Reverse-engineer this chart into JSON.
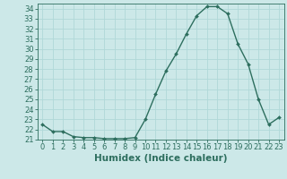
{
  "x": [
    0,
    1,
    2,
    3,
    4,
    5,
    6,
    7,
    8,
    9,
    10,
    11,
    12,
    13,
    14,
    15,
    16,
    17,
    18,
    19,
    20,
    21,
    22,
    23
  ],
  "y": [
    22.5,
    21.8,
    21.8,
    21.3,
    21.2,
    21.2,
    21.1,
    21.1,
    21.1,
    21.2,
    23.0,
    25.5,
    27.8,
    29.5,
    31.5,
    33.3,
    34.2,
    34.2,
    33.5,
    30.5,
    28.5,
    25.0,
    22.5,
    23.2
  ],
  "line_color": "#2d6e5e",
  "marker": "D",
  "marker_size": 2,
  "bg_color": "#cce8e8",
  "grid_color": "#b0d8d8",
  "xlabel": "Humidex (Indice chaleur)",
  "ylim": [
    21,
    34.5
  ],
  "xlim": [
    -0.5,
    23.5
  ],
  "yticks": [
    21,
    22,
    23,
    24,
    25,
    26,
    27,
    28,
    29,
    30,
    31,
    32,
    33,
    34
  ],
  "xticks": [
    0,
    1,
    2,
    3,
    4,
    5,
    6,
    7,
    8,
    9,
    10,
    11,
    12,
    13,
    14,
    15,
    16,
    17,
    18,
    19,
    20,
    21,
    22,
    23
  ],
  "xlabel_fontsize": 7.5,
  "tick_fontsize": 6,
  "line_width": 1.0
}
